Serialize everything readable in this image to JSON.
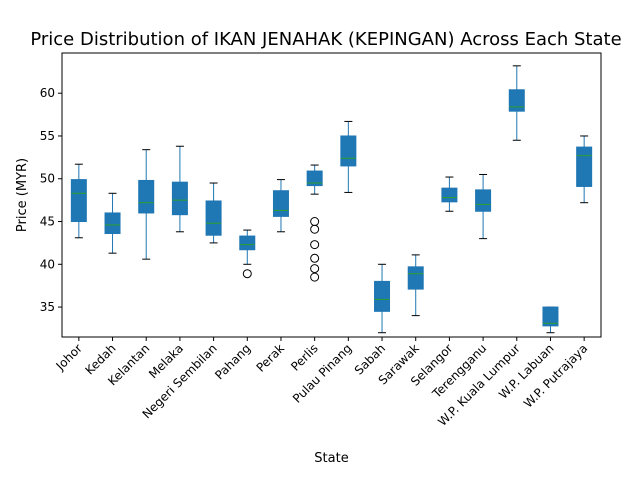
{
  "chart_data": {
    "type": "box",
    "title": "Price Distribution of IKAN JENAHAK (KEPINGAN) Across Each State",
    "xlabel": "State",
    "ylabel": "Price (MYR)",
    "ylim": [
      31.5,
      64.7
    ],
    "yticks": [
      35,
      40,
      45,
      50,
      55,
      60
    ],
    "grid": false,
    "colors": {
      "box": "#1f77b4",
      "median": "#2ca02c",
      "whisker": "#1f77b4",
      "flier": "#000000"
    },
    "categories": [
      "Johor",
      "Kedah",
      "Kelantan",
      "Melaka",
      "Negeri Sembilan",
      "Pahang",
      "Perak",
      "Perlis",
      "Pulau Pinang",
      "Sabah",
      "Sarawak",
      "Selangor",
      "Terengganu",
      "W.P. Kuala Lumpur",
      "W.P. Labuan",
      "W.P. Putrajaya"
    ],
    "boxes": [
      {
        "whislo": 43.1,
        "q1": 45.0,
        "med": 48.3,
        "q3": 49.9,
        "whishi": 51.7,
        "fliers": []
      },
      {
        "whislo": 41.3,
        "q1": 43.6,
        "med": 44.6,
        "q3": 46.0,
        "whishi": 48.3,
        "fliers": []
      },
      {
        "whislo": 40.6,
        "q1": 46.0,
        "med": 47.2,
        "q3": 49.8,
        "whishi": 53.4,
        "fliers": []
      },
      {
        "whislo": 43.8,
        "q1": 45.8,
        "med": 47.5,
        "q3": 49.6,
        "whishi": 53.8,
        "fliers": []
      },
      {
        "whislo": 42.5,
        "q1": 43.4,
        "med": 44.8,
        "q3": 47.4,
        "whishi": 49.5,
        "fliers": []
      },
      {
        "whislo": 40.0,
        "q1": 41.7,
        "med": 42.3,
        "q3": 43.3,
        "whishi": 44.0,
        "fliers": [
          38.9
        ]
      },
      {
        "whislo": 43.8,
        "q1": 45.6,
        "med": 46.3,
        "q3": 48.6,
        "whishi": 49.9,
        "fliers": []
      },
      {
        "whislo": 48.2,
        "q1": 49.2,
        "med": 49.5,
        "q3": 50.9,
        "whishi": 51.6,
        "fliers": [
          45.0,
          44.1,
          42.3,
          40.7,
          39.5,
          38.5
        ]
      },
      {
        "whislo": 48.4,
        "q1": 51.5,
        "med": 52.4,
        "q3": 55.0,
        "whishi": 56.7,
        "fliers": []
      },
      {
        "whislo": 32.0,
        "q1": 34.5,
        "med": 35.9,
        "q3": 38.0,
        "whishi": 40.0,
        "fliers": []
      },
      {
        "whislo": 34.0,
        "q1": 37.1,
        "med": 38.9,
        "q3": 39.7,
        "whishi": 41.1,
        "fliers": []
      },
      {
        "whislo": 46.2,
        "q1": 47.3,
        "med": 47.8,
        "q3": 48.9,
        "whishi": 50.2,
        "fliers": []
      },
      {
        "whislo": 43.0,
        "q1": 46.2,
        "med": 47.0,
        "q3": 48.7,
        "whishi": 50.5,
        "fliers": []
      },
      {
        "whislo": 54.5,
        "q1": 57.9,
        "med": 58.4,
        "q3": 60.4,
        "whishi": 63.2,
        "fliers": []
      },
      {
        "whislo": 32.0,
        "q1": 32.8,
        "med": 33.1,
        "q3": 35.0,
        "whishi": 35.0,
        "fliers": []
      },
      {
        "whislo": 47.2,
        "q1": 49.1,
        "med": 52.7,
        "q3": 53.7,
        "whishi": 55.0,
        "fliers": []
      }
    ]
  }
}
